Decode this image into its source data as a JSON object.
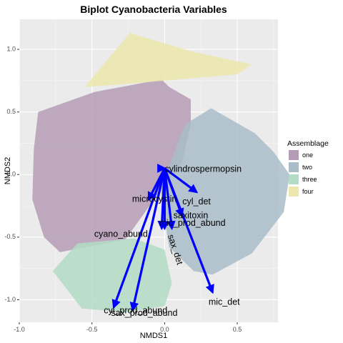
{
  "chart_data": {
    "type": "scatter",
    "title": "Biplot Cyanobacteria Variables",
    "xlabel": "NMDS1",
    "ylabel": "NMDS2",
    "xlim": [
      -1.0,
      0.78
    ],
    "ylim": [
      -1.18,
      1.24
    ],
    "x_ticks": [
      -1.0,
      -0.5,
      0.0,
      0.5
    ],
    "x_tick_labels": [
      "-1.0",
      "-0.5",
      "0.0",
      "0.5"
    ],
    "y_ticks": [
      -1.0,
      -0.5,
      0.0,
      0.5,
      1.0
    ],
    "y_tick_labels": [
      "-1.0",
      "-0.5",
      "0.0",
      "0.5",
      "1.0"
    ],
    "grid": true,
    "legend": {
      "title": "Assemblage",
      "position": "right",
      "entries": [
        {
          "label": "one",
          "color": "#b59cb6"
        },
        {
          "label": "two",
          "color": "#a9bdc9"
        },
        {
          "label": "three",
          "color": "#b3dcc6"
        },
        {
          "label": "four",
          "color": "#ece7ad"
        }
      ]
    },
    "hulls": [
      {
        "group": "one",
        "color": "#b59cb6",
        "points": [
          [
            -0.87,
            0.5
          ],
          [
            -0.48,
            0.66
          ],
          [
            -0.02,
            0.76
          ],
          [
            0.03,
            0.7
          ],
          [
            0.18,
            0.6
          ],
          [
            0.18,
            0.4
          ],
          [
            0.12,
            0.1
          ],
          [
            0.0,
            -0.08
          ],
          [
            -0.27,
            -0.52
          ],
          [
            -0.72,
            -0.62
          ],
          [
            -0.83,
            -0.5
          ],
          [
            -0.91,
            -0.2
          ],
          [
            -0.9,
            0.2
          ]
        ]
      },
      {
        "group": "two",
        "color": "#a9bdc9",
        "points": [
          [
            0.32,
            0.53
          ],
          [
            0.62,
            0.33
          ],
          [
            0.75,
            0.18
          ],
          [
            0.86,
            0.0
          ],
          [
            0.82,
            -0.3
          ],
          [
            0.6,
            -0.63
          ],
          [
            0.33,
            -0.8
          ],
          [
            0.2,
            -0.77
          ],
          [
            0.03,
            -0.58
          ],
          [
            -0.03,
            -0.12
          ],
          [
            0.14,
            0.4
          ]
        ]
      },
      {
        "group": "three",
        "color": "#b3dcc6",
        "points": [
          [
            -0.6,
            -0.55
          ],
          [
            -0.21,
            -0.51
          ],
          [
            0.0,
            -0.6
          ],
          [
            0.05,
            -0.87
          ],
          [
            0.0,
            -1.05
          ],
          [
            -0.27,
            -1.1
          ],
          [
            -0.57,
            -1.07
          ],
          [
            -0.77,
            -0.77
          ]
        ]
      },
      {
        "group": "four",
        "color": "#ece7ad",
        "points": [
          [
            -0.24,
            1.13
          ],
          [
            0.2,
            0.98
          ],
          [
            0.6,
            0.88
          ],
          [
            0.5,
            0.8
          ],
          [
            -0.3,
            0.72
          ],
          [
            -0.55,
            0.7
          ]
        ]
      }
    ],
    "arrow_origin": [
      0.0,
      0.05
    ],
    "arrows": [
      {
        "label": "cylindrospermopsin",
        "x": 0.0,
        "y": 0.05,
        "label_x": 0.0,
        "label_y": 0.04,
        "anchor": "start",
        "rotate": 0
      },
      {
        "label": "cyl_det",
        "x": 0.22,
        "y": -0.14,
        "label_x": 0.22,
        "label_y": -0.22,
        "anchor": "middle",
        "rotate": 0
      },
      {
        "label": "microcystin",
        "x": -0.11,
        "y": -0.2,
        "label_x": -0.07,
        "label_y": -0.2,
        "anchor": "middle",
        "rotate": 0
      },
      {
        "label": "saxitoxin",
        "x": 0.12,
        "y": -0.33,
        "label_x": 0.18,
        "label_y": -0.33,
        "anchor": "middle",
        "rotate": 0
      },
      {
        "label": "mic_prod_abund",
        "x": 0.05,
        "y": -0.43,
        "label_x": 0.19,
        "label_y": -0.39,
        "anchor": "middle",
        "rotate": 0
      },
      {
        "label": "cyano_abund",
        "x": -0.02,
        "y": -0.43,
        "label_x": -0.3,
        "label_y": -0.48,
        "anchor": "middle",
        "rotate": 0
      },
      {
        "label": "sax_det",
        "x": 0.0,
        "y": -0.43,
        "label_x": 0.07,
        "label_y": -0.6,
        "anchor": "middle",
        "rotate": 72
      },
      {
        "label": "mic_det",
        "x": 0.33,
        "y": -0.94,
        "label_x": 0.41,
        "label_y": -1.02,
        "anchor": "middle",
        "rotate": 0
      },
      {
        "label": "cyl_prod_abund",
        "x": -0.35,
        "y": -1.06,
        "label_x": -0.2,
        "label_y": -1.09,
        "anchor": "middle",
        "rotate": 0
      },
      {
        "label": "sax_prod_abund",
        "x": -0.22,
        "y": -1.08,
        "label_x": -0.14,
        "label_y": -1.11,
        "anchor": "middle",
        "rotate": 0
      }
    ],
    "arrow_color": "#0000ff"
  }
}
